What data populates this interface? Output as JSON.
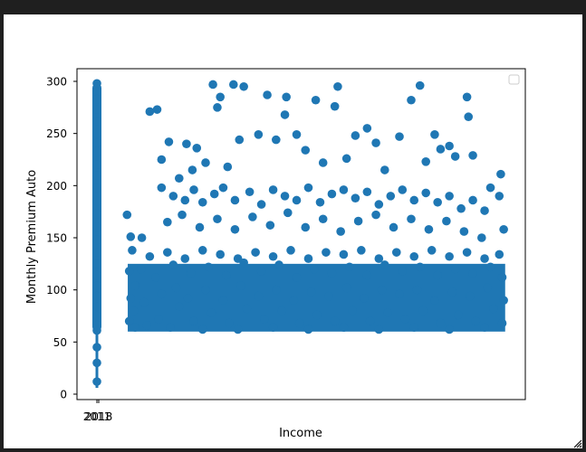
{
  "window": {
    "resize_grip_icon": "resize-grip-icon"
  },
  "chart_data": {
    "type": "scatter",
    "xlabel": "Income",
    "ylabel": "Monthly Premium Auto",
    "ylim": [
      0,
      310
    ],
    "yticks": [
      0,
      50,
      100,
      150,
      200,
      250,
      300
    ],
    "xtick_labels": [
      "2011",
      "2018"
    ],
    "marker_color": "#1f77b4",
    "legend": {
      "placement": "top-right",
      "entries": []
    },
    "series": [
      {
        "points": [
          {
            "x": 0,
            "y": 298
          },
          {
            "x": 0,
            "y": 290
          },
          {
            "x": 0,
            "y": 283
          },
          {
            "x": 0,
            "y": 273
          },
          {
            "x": 0,
            "y": 262
          },
          {
            "x": 0,
            "y": 250
          },
          {
            "x": 0,
            "y": 241
          },
          {
            "x": 0,
            "y": 232
          },
          {
            "x": 0,
            "y": 220
          },
          {
            "x": 0,
            "y": 210
          },
          {
            "x": 0,
            "y": 198
          },
          {
            "x": 0,
            "y": 185
          },
          {
            "x": 0,
            "y": 173
          },
          {
            "x": 0,
            "y": 160
          },
          {
            "x": 0,
            "y": 148
          },
          {
            "x": 0,
            "y": 136
          },
          {
            "x": 0,
            "y": 125
          },
          {
            "x": 0,
            "y": 114
          },
          {
            "x": 0,
            "y": 104
          },
          {
            "x": 0,
            "y": 94
          },
          {
            "x": 0,
            "y": 84
          },
          {
            "x": 0,
            "y": 75
          },
          {
            "x": 0,
            "y": 66
          },
          {
            "x": 0,
            "y": 61
          },
          {
            "x": 0,
            "y": 45
          },
          {
            "x": 0,
            "y": 30
          },
          {
            "x": 0,
            "y": 12
          },
          {
            "x": 10260,
            "y": 172
          },
          {
            "x": 11500,
            "y": 151
          },
          {
            "x": 15300,
            "y": 150
          },
          {
            "x": 18000,
            "y": 271
          },
          {
            "x": 20500,
            "y": 273
          },
          {
            "x": 22000,
            "y": 225
          },
          {
            "x": 24500,
            "y": 242
          },
          {
            "x": 28000,
            "y": 207
          },
          {
            "x": 30500,
            "y": 240
          },
          {
            "x": 32500,
            "y": 215
          },
          {
            "x": 34000,
            "y": 236
          },
          {
            "x": 37000,
            "y": 222
          },
          {
            "x": 39500,
            "y": 297
          },
          {
            "x": 41000,
            "y": 275
          },
          {
            "x": 42000,
            "y": 285
          },
          {
            "x": 44500,
            "y": 218
          },
          {
            "x": 46500,
            "y": 297
          },
          {
            "x": 48500,
            "y": 244
          },
          {
            "x": 50000,
            "y": 295
          },
          {
            "x": 55000,
            "y": 249
          },
          {
            "x": 58000,
            "y": 287
          },
          {
            "x": 61000,
            "y": 244
          },
          {
            "x": 64000,
            "y": 268
          },
          {
            "x": 64500,
            "y": 285
          },
          {
            "x": 68000,
            "y": 249
          },
          {
            "x": 71000,
            "y": 234
          },
          {
            "x": 74500,
            "y": 282
          },
          {
            "x": 77000,
            "y": 222
          },
          {
            "x": 81000,
            "y": 276
          },
          {
            "x": 82000,
            "y": 295
          },
          {
            "x": 85000,
            "y": 226
          },
          {
            "x": 88000,
            "y": 248
          },
          {
            "x": 92000,
            "y": 255
          },
          {
            "x": 95000,
            "y": 241
          },
          {
            "x": 98000,
            "y": 215
          },
          {
            "x": 103000,
            "y": 247
          },
          {
            "x": 107000,
            "y": 282
          },
          {
            "x": 110000,
            "y": 296
          },
          {
            "x": 112000,
            "y": 223
          },
          {
            "x": 115000,
            "y": 249
          },
          {
            "x": 117000,
            "y": 235
          },
          {
            "x": 120000,
            "y": 238
          },
          {
            "x": 122000,
            "y": 228
          },
          {
            "x": 126000,
            "y": 285
          },
          {
            "x": 126500,
            "y": 266
          },
          {
            "x": 128000,
            "y": 229
          },
          {
            "x": 134000,
            "y": 198
          },
          {
            "x": 137500,
            "y": 211
          },
          {
            "x": 138500,
            "y": 158
          },
          {
            "x": 22000,
            "y": 198
          },
          {
            "x": 26000,
            "y": 190
          },
          {
            "x": 30000,
            "y": 186
          },
          {
            "x": 33000,
            "y": 196
          },
          {
            "x": 36000,
            "y": 184
          },
          {
            "x": 40000,
            "y": 192
          },
          {
            "x": 43000,
            "y": 198
          },
          {
            "x": 47000,
            "y": 186
          },
          {
            "x": 52000,
            "y": 194
          },
          {
            "x": 56000,
            "y": 182
          },
          {
            "x": 60000,
            "y": 196
          },
          {
            "x": 64000,
            "y": 190
          },
          {
            "x": 68000,
            "y": 186
          },
          {
            "x": 72000,
            "y": 198
          },
          {
            "x": 76000,
            "y": 184
          },
          {
            "x": 80000,
            "y": 192
          },
          {
            "x": 84000,
            "y": 196
          },
          {
            "x": 88000,
            "y": 188
          },
          {
            "x": 92000,
            "y": 194
          },
          {
            "x": 96000,
            "y": 182
          },
          {
            "x": 100000,
            "y": 190
          },
          {
            "x": 104000,
            "y": 196
          },
          {
            "x": 108000,
            "y": 186
          },
          {
            "x": 112000,
            "y": 193
          },
          {
            "x": 116000,
            "y": 184
          },
          {
            "x": 120000,
            "y": 190
          },
          {
            "x": 124000,
            "y": 178
          },
          {
            "x": 128000,
            "y": 186
          },
          {
            "x": 132000,
            "y": 176
          },
          {
            "x": 137000,
            "y": 190
          },
          {
            "x": 24000,
            "y": 165
          },
          {
            "x": 29000,
            "y": 172
          },
          {
            "x": 35000,
            "y": 160
          },
          {
            "x": 41000,
            "y": 168
          },
          {
            "x": 47000,
            "y": 158
          },
          {
            "x": 53000,
            "y": 170
          },
          {
            "x": 59000,
            "y": 162
          },
          {
            "x": 65000,
            "y": 174
          },
          {
            "x": 71000,
            "y": 160
          },
          {
            "x": 77000,
            "y": 168
          },
          {
            "x": 83000,
            "y": 156
          },
          {
            "x": 89000,
            "y": 166
          },
          {
            "x": 95000,
            "y": 172
          },
          {
            "x": 101000,
            "y": 160
          },
          {
            "x": 107000,
            "y": 168
          },
          {
            "x": 113000,
            "y": 158
          },
          {
            "x": 119000,
            "y": 166
          },
          {
            "x": 125000,
            "y": 156
          },
          {
            "x": 131000,
            "y": 150
          },
          {
            "x": 12000,
            "y": 138
          },
          {
            "x": 18000,
            "y": 132
          },
          {
            "x": 24000,
            "y": 136
          },
          {
            "x": 30000,
            "y": 130
          },
          {
            "x": 36000,
            "y": 138
          },
          {
            "x": 42000,
            "y": 134
          },
          {
            "x": 48000,
            "y": 130
          },
          {
            "x": 54000,
            "y": 136
          },
          {
            "x": 60000,
            "y": 132
          },
          {
            "x": 66000,
            "y": 138
          },
          {
            "x": 72000,
            "y": 130
          },
          {
            "x": 78000,
            "y": 136
          },
          {
            "x": 84000,
            "y": 134
          },
          {
            "x": 90000,
            "y": 138
          },
          {
            "x": 96000,
            "y": 130
          },
          {
            "x": 102000,
            "y": 136
          },
          {
            "x": 108000,
            "y": 132
          },
          {
            "x": 114000,
            "y": 138
          },
          {
            "x": 120000,
            "y": 132
          },
          {
            "x": 126000,
            "y": 136
          },
          {
            "x": 132000,
            "y": 130
          },
          {
            "x": 137000,
            "y": 134
          },
          {
            "x": 11000,
            "y": 118
          },
          {
            "x": 13000,
            "y": 104
          },
          {
            "x": 11500,
            "y": 92
          },
          {
            "x": 12500,
            "y": 80
          },
          {
            "x": 11000,
            "y": 70
          },
          {
            "x": 13000,
            "y": 64
          },
          {
            "x": 15000,
            "y": 120
          },
          {
            "x": 16000,
            "y": 88
          },
          {
            "x": 17000,
            "y": 66
          },
          {
            "x": 20000,
            "y": 112
          },
          {
            "x": 22000,
            "y": 96
          },
          {
            "x": 21000,
            "y": 72
          },
          {
            "x": 26000,
            "y": 124
          },
          {
            "x": 27000,
            "y": 102
          },
          {
            "x": 28000,
            "y": 84
          },
          {
            "x": 25000,
            "y": 64
          },
          {
            "x": 32000,
            "y": 116
          },
          {
            "x": 31000,
            "y": 92
          },
          {
            "x": 33000,
            "y": 70
          },
          {
            "x": 38000,
            "y": 122
          },
          {
            "x": 37000,
            "y": 100
          },
          {
            "x": 39000,
            "y": 78
          },
          {
            "x": 36000,
            "y": 62
          },
          {
            "x": 44000,
            "y": 114
          },
          {
            "x": 43000,
            "y": 90
          },
          {
            "x": 45000,
            "y": 68
          },
          {
            "x": 50000,
            "y": 126
          },
          {
            "x": 49000,
            "y": 104
          },
          {
            "x": 51000,
            "y": 82
          },
          {
            "x": 48000,
            "y": 62
          },
          {
            "x": 56000,
            "y": 118
          },
          {
            "x": 55000,
            "y": 94
          },
          {
            "x": 57000,
            "y": 72
          },
          {
            "x": 62000,
            "y": 124
          },
          {
            "x": 61000,
            "y": 100
          },
          {
            "x": 63000,
            "y": 80
          },
          {
            "x": 60000,
            "y": 64
          },
          {
            "x": 68000,
            "y": 112
          },
          {
            "x": 67000,
            "y": 90
          },
          {
            "x": 69000,
            "y": 68
          },
          {
            "x": 74000,
            "y": 120
          },
          {
            "x": 73000,
            "y": 98
          },
          {
            "x": 75000,
            "y": 76
          },
          {
            "x": 72000,
            "y": 62
          },
          {
            "x": 80000,
            "y": 116
          },
          {
            "x": 79000,
            "y": 94
          },
          {
            "x": 81000,
            "y": 70
          },
          {
            "x": 86000,
            "y": 122
          },
          {
            "x": 85000,
            "y": 102
          },
          {
            "x": 87000,
            "y": 80
          },
          {
            "x": 84000,
            "y": 64
          },
          {
            "x": 92000,
            "y": 114
          },
          {
            "x": 91000,
            "y": 92
          },
          {
            "x": 93000,
            "y": 70
          },
          {
            "x": 98000,
            "y": 124
          },
          {
            "x": 97000,
            "y": 100
          },
          {
            "x": 99000,
            "y": 78
          },
          {
            "x": 96000,
            "y": 62
          },
          {
            "x": 104000,
            "y": 118
          },
          {
            "x": 103000,
            "y": 96
          },
          {
            "x": 105000,
            "y": 72
          },
          {
            "x": 110000,
            "y": 122
          },
          {
            "x": 109000,
            "y": 100
          },
          {
            "x": 111000,
            "y": 80
          },
          {
            "x": 108000,
            "y": 64
          },
          {
            "x": 116000,
            "y": 114
          },
          {
            "x": 115000,
            "y": 90
          },
          {
            "x": 117000,
            "y": 68
          },
          {
            "x": 122000,
            "y": 120
          },
          {
            "x": 121000,
            "y": 98
          },
          {
            "x": 123000,
            "y": 76
          },
          {
            "x": 120000,
            "y": 62
          },
          {
            "x": 128000,
            "y": 116
          },
          {
            "x": 127000,
            "y": 94
          },
          {
            "x": 129000,
            "y": 70
          },
          {
            "x": 134000,
            "y": 122
          },
          {
            "x": 133000,
            "y": 102
          },
          {
            "x": 135000,
            "y": 82
          },
          {
            "x": 132000,
            "y": 64
          },
          {
            "x": 138000,
            "y": 112
          },
          {
            "x": 138500,
            "y": 90
          },
          {
            "x": 138000,
            "y": 68
          }
        ]
      }
    ]
  }
}
